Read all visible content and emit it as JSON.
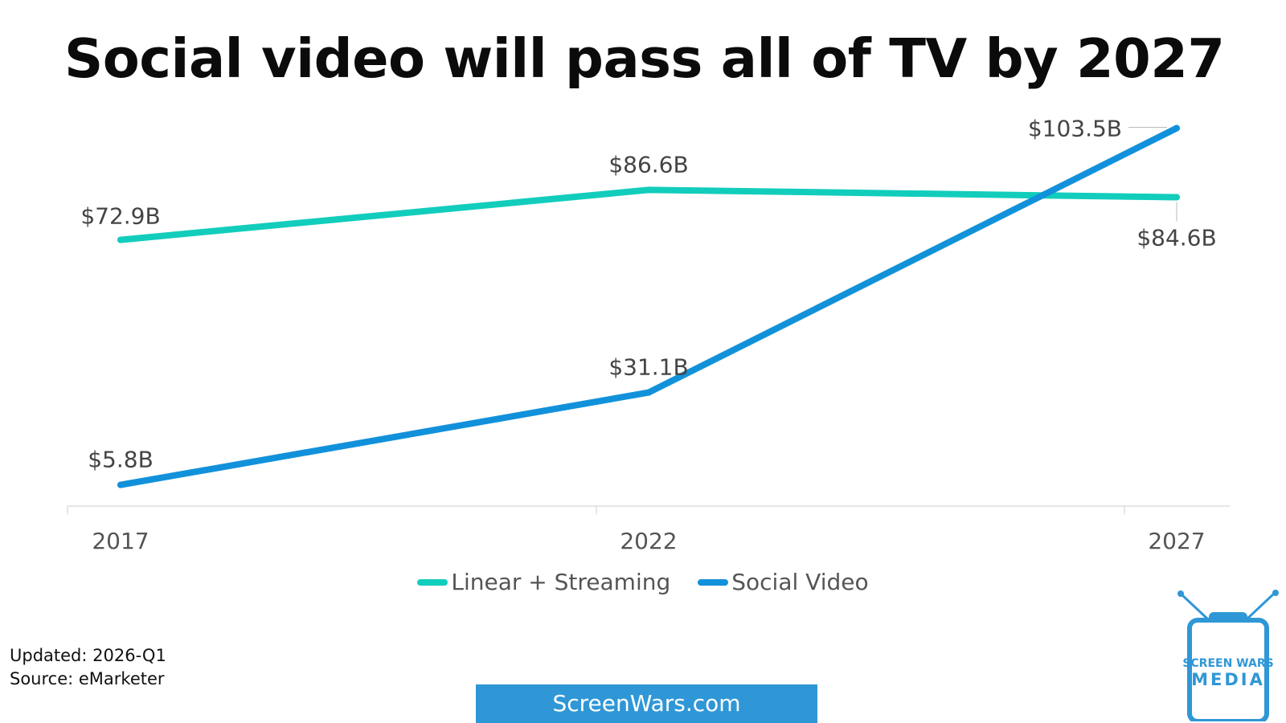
{
  "chart_data": {
    "type": "line",
    "title": "Social video will pass all of TV by 2027",
    "xlabel": "",
    "ylabel": "",
    "categories": [
      "2017",
      "2022",
      "2027"
    ],
    "ylim": [
      0,
      110
    ],
    "grid": false,
    "legend_position": "bottom-center",
    "series": [
      {
        "name": "Linear + Streaming",
        "color": "#12cdbc",
        "values": [
          72.9,
          86.6,
          84.6
        ],
        "labels": [
          "$72.9B",
          "$86.6B",
          "$84.6B"
        ]
      },
      {
        "name": "Social Video",
        "color": "#1291db",
        "values": [
          5.8,
          31.1,
          103.5
        ],
        "labels": [
          "$5.8B",
          "$31.1B",
          "$103.5B"
        ]
      }
    ]
  },
  "footer": {
    "updated": "Updated: 2026-Q1",
    "source": "Source: eMarketer"
  },
  "site": {
    "label": "ScreenWars.com",
    "color": "#2f97d6"
  },
  "logo": {
    "line1": "SCREEN WARS",
    "line2": "MEDIA",
    "icon": "tv-icon"
  }
}
